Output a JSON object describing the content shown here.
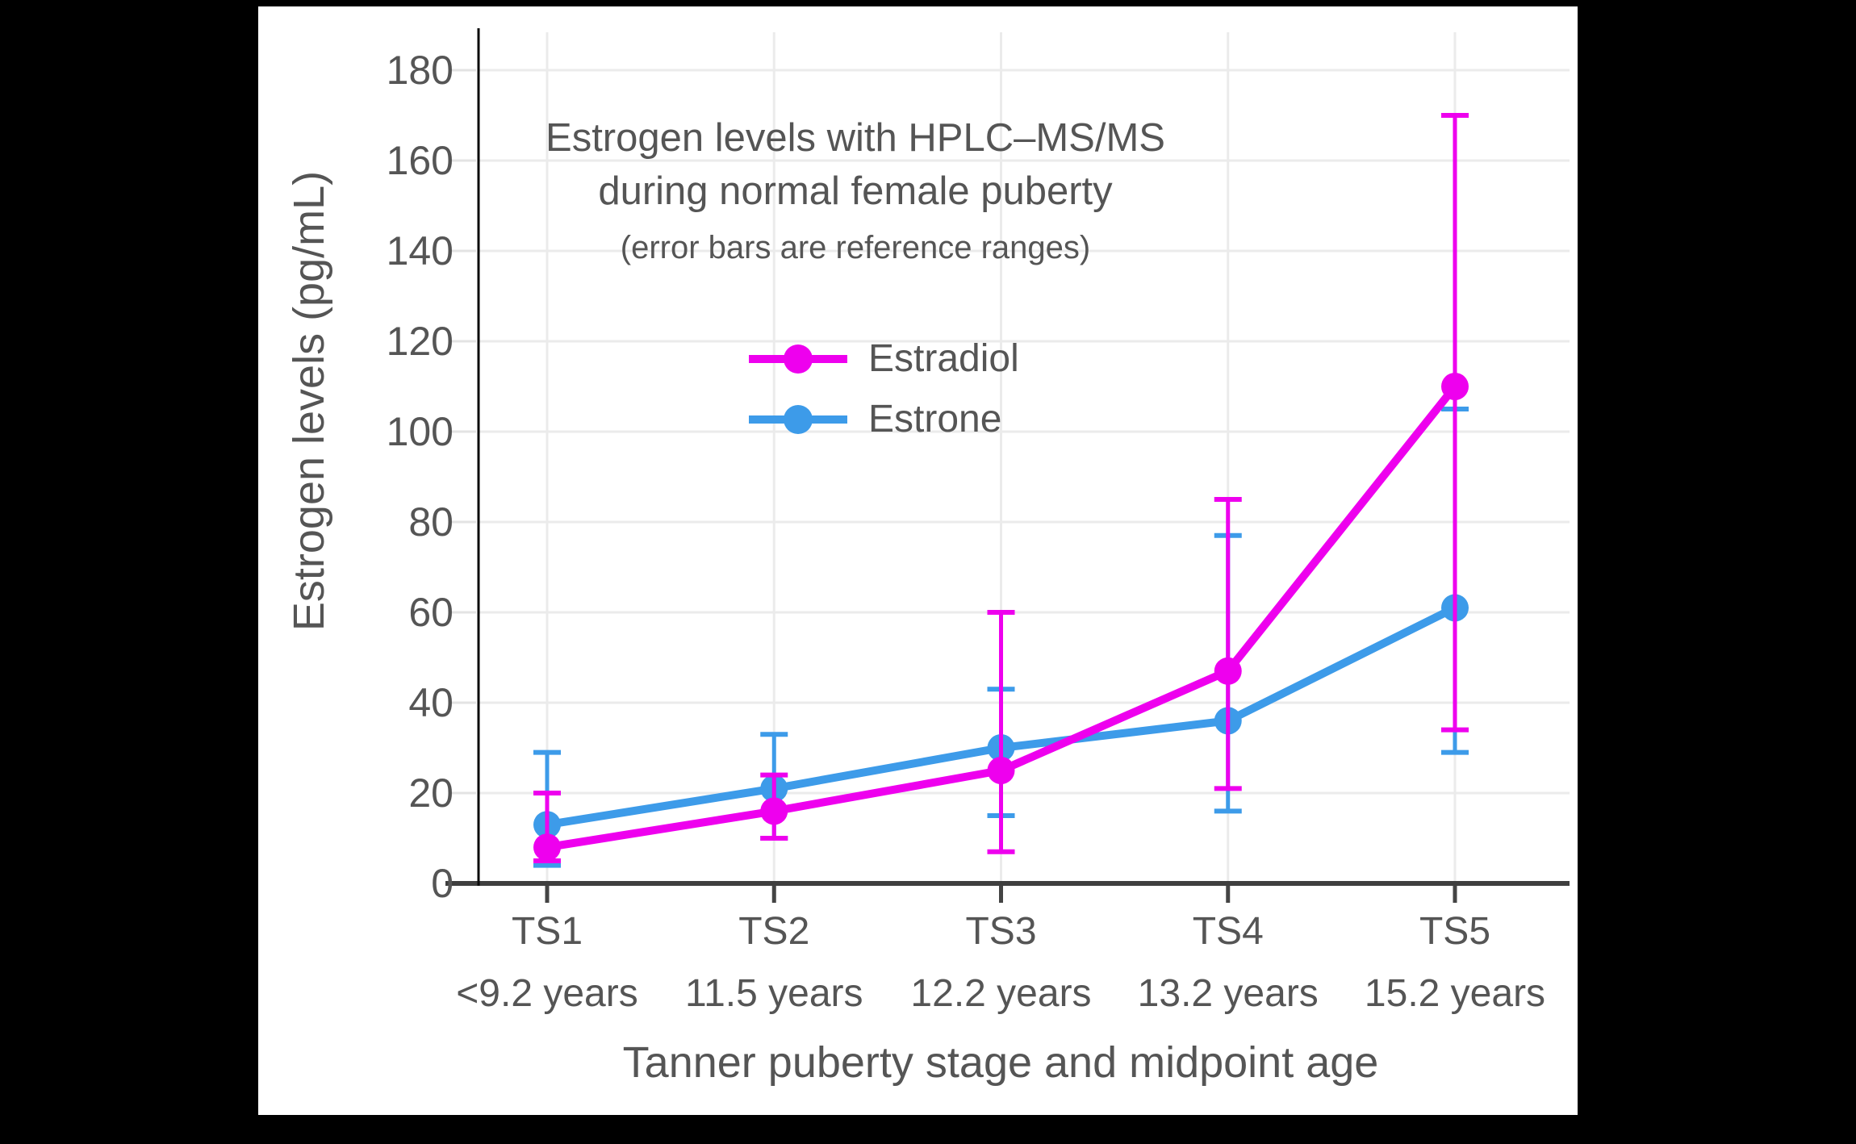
{
  "page": {
    "background": "#000000",
    "panel_background": "#ffffff",
    "text_color": "#555555"
  },
  "title": {
    "line1": "Estrogen levels with HPLC–MS/MS",
    "line2": "during normal female puberty",
    "subtitle": "(error bars are reference ranges)"
  },
  "chart_data": {
    "type": "line",
    "title": "Estrogen levels with HPLC–MS/MS during normal female puberty",
    "subtitle": "(error bars are reference ranges)",
    "xlabel": "Tanner puberty stage and midpoint age",
    "ylabel": "Estrogen levels (pg/mL)",
    "ylim": [
      0,
      190
    ],
    "y_ticks": [
      0,
      20,
      40,
      60,
      80,
      100,
      120,
      140,
      160,
      180
    ],
    "grid": true,
    "error_bars": "reference ranges",
    "legend_position": "upper center",
    "categories": [
      "TS1",
      "TS2",
      "TS3",
      "TS4",
      "TS5"
    ],
    "category_ages": [
      "<9.2 years",
      "11.5 years",
      "12.2 years",
      "13.2 years",
      "15.2 years"
    ],
    "series": [
      {
        "name": "Estradiol",
        "color": "#EE00EE",
        "values": [
          8,
          16,
          25,
          47,
          110
        ],
        "error_low": [
          5,
          10,
          7,
          21,
          34
        ],
        "error_high": [
          20,
          24,
          60,
          85,
          170
        ]
      },
      {
        "name": "Estrone",
        "color": "#3D9BE9",
        "values": [
          13,
          21,
          30,
          36,
          61
        ],
        "error_low": [
          4,
          10,
          15,
          16,
          29
        ],
        "error_high": [
          29,
          33,
          43,
          77,
          105
        ]
      }
    ]
  },
  "colors": {
    "gridline": "#EBEBEB",
    "x_axis_line": "#3F3F3F",
    "y_axis_line": "#0A0A0A",
    "tick_mark": "#444444"
  }
}
